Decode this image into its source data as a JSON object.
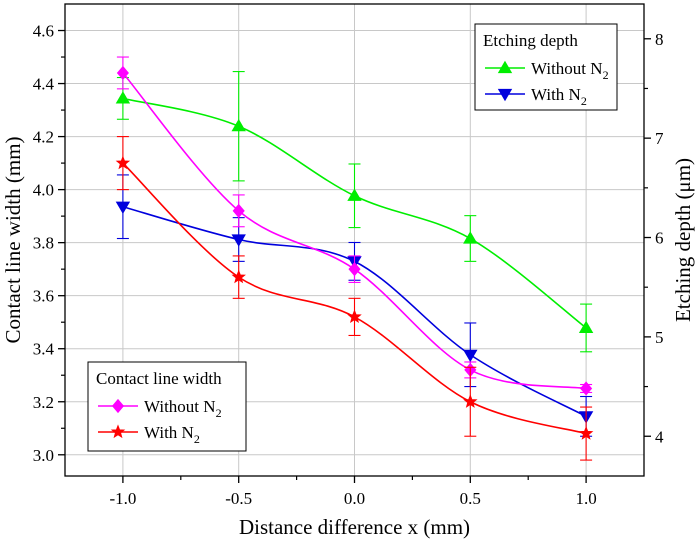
{
  "chart_data": {
    "type": "line",
    "x": [
      -1.0,
      -0.5,
      0.0,
      0.5,
      1.0
    ],
    "x_tick_labels": [
      "-1.0",
      "-0.5",
      "0.0",
      "0.5",
      "1.0"
    ],
    "xlabel": "Distance difference x (mm)",
    "xlim": [
      -1.25,
      1.25
    ],
    "ylabel_left": "Contact line width (mm)",
    "ylim_left": [
      2.92,
      4.7
    ],
    "yticks_left": [
      3.0,
      3.2,
      3.4,
      3.6,
      3.8,
      4.0,
      4.2,
      4.4,
      4.6
    ],
    "ytick_labels_left": [
      "3.0",
      "3.2",
      "3.4",
      "3.6",
      "3.8",
      "4.0",
      "4.2",
      "4.4",
      "4.6"
    ],
    "ylabel_right": "Etching depth (μm)",
    "ylim_right": [
      3.6,
      8.35
    ],
    "yticks_right": [
      4,
      5,
      6,
      7,
      8
    ],
    "ytick_labels_right": [
      "4",
      "5",
      "6",
      "7",
      "8"
    ],
    "grid": true,
    "legends": [
      {
        "title": "Etching depth",
        "placement": "top-right",
        "entries": [
          {
            "text": "Without N",
            "sub": "2",
            "series": 0
          },
          {
            "text": "With N",
            "sub": "2",
            "series": 1
          }
        ]
      },
      {
        "title": "Contact line width",
        "placement": "bottom-left",
        "entries": [
          {
            "text": "Without N",
            "sub": "2",
            "series": 2
          },
          {
            "text": "With N",
            "sub": "2",
            "series": 3
          }
        ]
      }
    ],
    "series": [
      {
        "axis": "right",
        "color": "#00ee00",
        "marker": "triangle-up",
        "values": [
          7.4,
          7.12,
          6.42,
          5.99,
          5.09
        ],
        "errors": [
          0.21,
          0.55,
          0.32,
          0.23,
          0.24
        ]
      },
      {
        "axis": "right",
        "color": "#0000dd",
        "marker": "triangle-down",
        "values": [
          6.31,
          5.98,
          5.76,
          4.82,
          4.2
        ],
        "errors": [
          0.32,
          0.22,
          0.19,
          0.32,
          0.2
        ]
      },
      {
        "axis": "left",
        "color": "#ff00ff",
        "marker": "diamond",
        "values": [
          4.44,
          3.92,
          3.7,
          3.32,
          3.25
        ],
        "errors": [
          0.06,
          0.06,
          0.05,
          0.03,
          0.015
        ]
      },
      {
        "axis": "left",
        "color": "#ff0000",
        "marker": "star",
        "values": [
          4.1,
          3.67,
          3.52,
          3.2,
          3.08
        ],
        "errors": [
          0.1,
          0.08,
          0.07,
          0.13,
          0.1
        ]
      }
    ]
  }
}
